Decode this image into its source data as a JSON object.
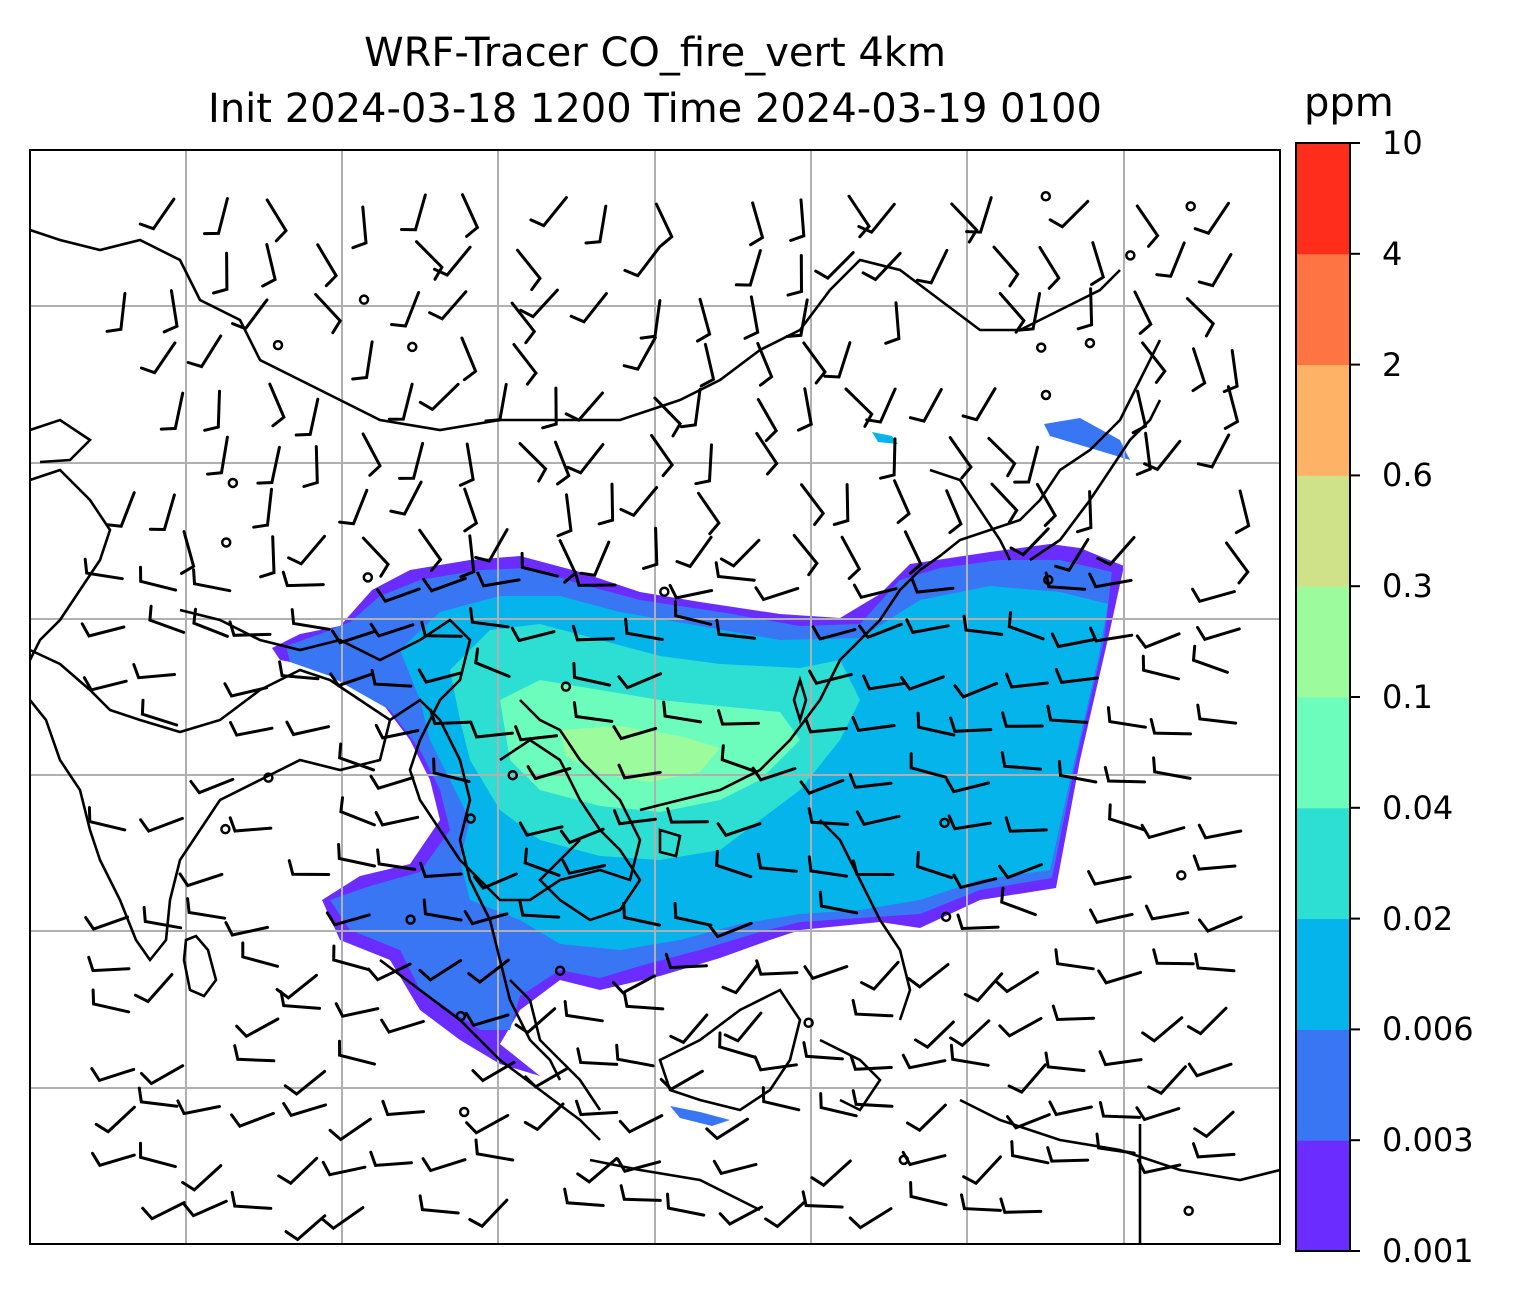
{
  "title": {
    "line1": "WRF-Tracer CO_fire_vert 4km",
    "line2": "Init 2024-03-18 1200 Time 2024-03-19 0100"
  },
  "colorbar": {
    "unit": "ppm",
    "levels": [
      "0.001",
      "0.003",
      "0.006",
      "0.02",
      "0.04",
      "0.1",
      "0.3",
      "0.6",
      "2",
      "4",
      "10"
    ],
    "colors": [
      "#6a2cff",
      "#3876f4",
      "#06b4ec",
      "#2ddfd3",
      "#6cfdbc",
      "#9cfb9c",
      "#cfe28a",
      "#feb266",
      "#ff7443",
      "#ff2d1b"
    ]
  },
  "map": {
    "gridlines": true,
    "gridline_color": "#b0b0b0",
    "overlay": "wind barbs",
    "coastline_color": "#000000"
  }
}
